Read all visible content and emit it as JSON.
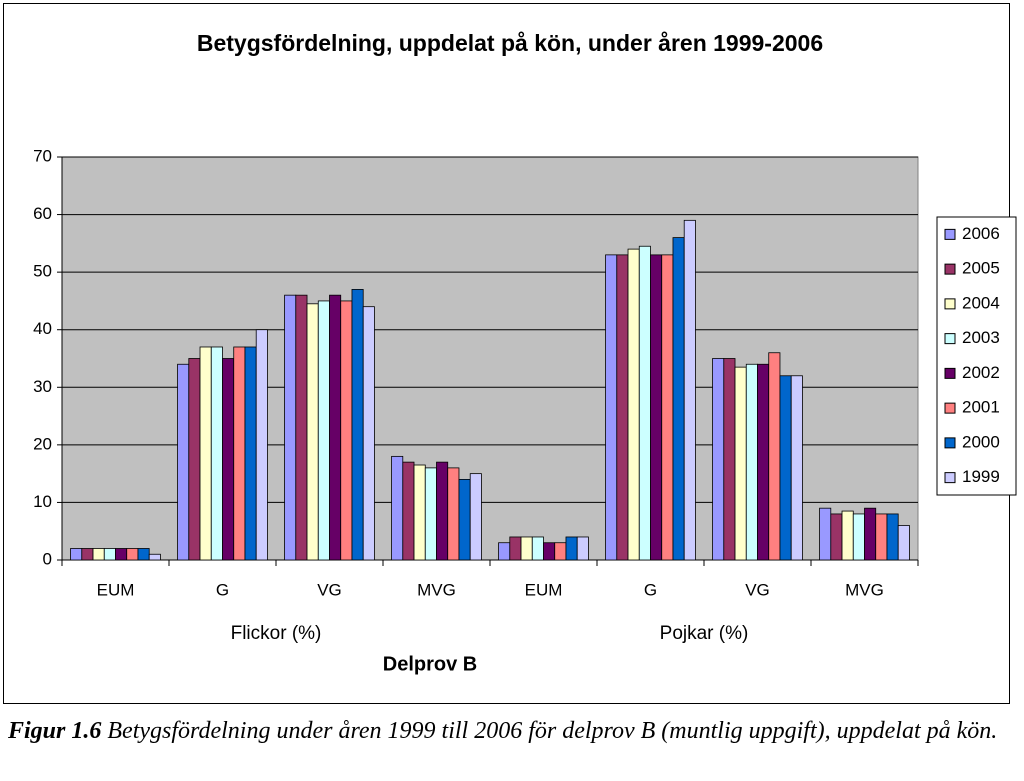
{
  "chart_data": {
    "type": "bar",
    "title": "Betygsfördelning, uppdelat på kön, under åren 1999-2006",
    "categories": [
      "EUM",
      "G",
      "VG",
      "MVG",
      "EUM",
      "G",
      "VG",
      "MVG"
    ],
    "groups": [
      "Flickor (%)",
      "Pojkar (%)"
    ],
    "x_label": "Delprov B",
    "series": [
      {
        "name": "2006",
        "color": "#9999ff",
        "values": [
          2,
          34,
          46,
          18,
          3,
          53,
          35,
          9
        ]
      },
      {
        "name": "2005",
        "color": "#993366",
        "values": [
          2,
          35,
          46,
          17,
          4,
          53,
          35,
          8
        ]
      },
      {
        "name": "2004",
        "color": "#ffffcc",
        "values": [
          2,
          37,
          44.5,
          16.5,
          4,
          54,
          33.5,
          8.5
        ]
      },
      {
        "name": "2003",
        "color": "#ccffff",
        "values": [
          2,
          37,
          45,
          16,
          4,
          54.5,
          34,
          8
        ]
      },
      {
        "name": "2002",
        "color": "#660066",
        "values": [
          2,
          35,
          46,
          17,
          3,
          53,
          34,
          9
        ]
      },
      {
        "name": "2001",
        "color": "#ff8080",
        "values": [
          2,
          37,
          45,
          16,
          3,
          53,
          36,
          8
        ]
      },
      {
        "name": "2000",
        "color": "#0066cc",
        "values": [
          2,
          37,
          47,
          14,
          4,
          56,
          32,
          8
        ]
      },
      {
        "name": "1999",
        "color": "#ccccff",
        "values": [
          1,
          40,
          44,
          15,
          4,
          59,
          32,
          6
        ]
      }
    ],
    "ylim": [
      0,
      70
    ],
    "yticks": [
      0,
      10,
      20,
      30,
      40,
      50,
      60,
      70
    ],
    "grid": true,
    "plot_background": "#c0c0c0",
    "legend": "right"
  },
  "caption": {
    "label": "Figur 1.6",
    "text": "Betygsfördelning under åren 1999 till 2006 för delprov B (muntlig uppgift), uppdelat på kön."
  }
}
